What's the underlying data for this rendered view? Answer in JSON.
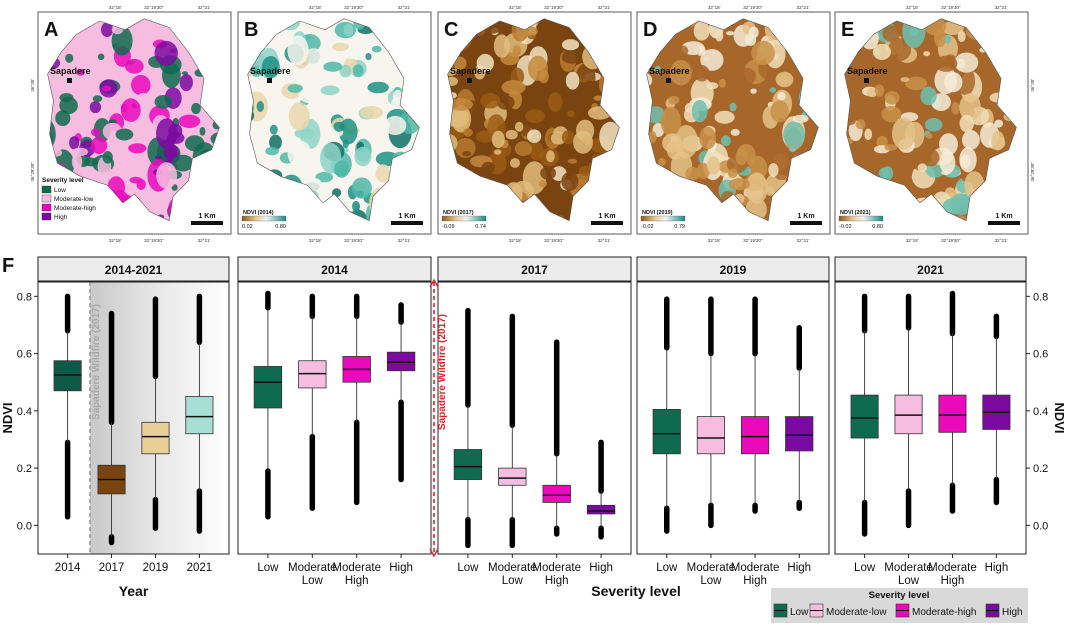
{
  "colors": {
    "low": "#0f6b4e",
    "moderate_low": "#f7bde0",
    "moderate_high": "#ea0abc",
    "high": "#7b0aa0",
    "y2014": "#0d5a48",
    "y2017": "#7a4410",
    "y2019": "#e9cf96",
    "y2021": "#a9ded5",
    "wildfire_red": "#e0202a",
    "wildfire_gray": "#9b9b9b"
  },
  "maps": [
    {
      "letter": "A",
      "town": "Sapadere",
      "scale": "1 Km",
      "type": "severity",
      "coords_top": [
        "32°18'",
        "32°19'30\"",
        "32°21'"
      ],
      "coords_bottom": [
        "32°18'",
        "32°19'30\"",
        "32°21'"
      ],
      "coords_left": [
        "36°30'",
        "36°28'30\""
      ],
      "legend_title": "Severity level",
      "legend_items": [
        "Low",
        "Moderate-low",
        "Moderate-high",
        "High"
      ]
    },
    {
      "letter": "B",
      "town": "Sapadere",
      "scale": "1 Km",
      "type": "ndvi",
      "coords_top": [
        "32°18'",
        "32°19'30\"",
        "32°21'"
      ],
      "coords_bottom": [
        "32°18'",
        "32°19'30\"",
        "32°21'"
      ],
      "ndvi_title": "NDVI (2014)",
      "ndvi_min": "0.02",
      "ndvi_max": "0.80",
      "trend": "green"
    },
    {
      "letter": "C",
      "town": "Sapadere",
      "scale": "1 Km",
      "type": "ndvi",
      "coords_top": [
        "32°18'",
        "32°19'30\"",
        "32°21'"
      ],
      "coords_bottom": [
        "32°18'",
        "32°19'30\"",
        "32°21'"
      ],
      "ndvi_title": "NDVI (2017)",
      "ndvi_min": "-0.09",
      "ndvi_max": "0.74",
      "trend": "brown"
    },
    {
      "letter": "D",
      "town": "Sapadere",
      "scale": "1 Km",
      "type": "ndvi",
      "coords_top": [
        "32°18'",
        "32°19'30\"",
        "32°21'"
      ],
      "coords_bottom": [
        "32°18'",
        "32°19'30\"",
        "32°21'"
      ],
      "ndvi_title": "NDVI (2019)",
      "ndvi_min": "-0.02",
      "ndvi_max": "0.79",
      "trend": "mixed"
    },
    {
      "letter": "E",
      "town": "Sapadere",
      "scale": "1 Km",
      "type": "ndvi",
      "coords_top": [
        "32°18'",
        "32°19'30\"",
        "32°21'"
      ],
      "coords_bottom": [
        "32°18'",
        "32°19'30\"",
        "32°21'"
      ],
      "coords_right": [
        "36°30'",
        "36°28'30\""
      ],
      "ndvi_title": "NDVI (2021)",
      "ndvi_min": "-0.02",
      "ndvi_max": "0.80",
      "trend": "mixed"
    }
  ],
  "panel_f_letter": "F",
  "annotations": {
    "wildfire_gray": "Sapadere Wildfire (2017)",
    "wildfire_red": "Sapadere Wildfire (2017)"
  },
  "legend": {
    "title": "Severity level",
    "items": [
      "Low",
      "Moderate-low",
      "Moderate-high",
      "High"
    ]
  },
  "chart_data": [
    {
      "type": "box",
      "title": "2014-2021",
      "xlabel": "Year",
      "ylabel": "NDVI",
      "ylim": [
        -0.1,
        0.85
      ],
      "yticks": [
        "0.0",
        "0.2",
        "0.4",
        "0.6",
        "0.8"
      ],
      "categories": [
        "2014",
        "2017",
        "2019",
        "2021"
      ],
      "boxes": [
        {
          "label": "2014",
          "color_key": "y2014",
          "q1": 0.47,
          "median": 0.525,
          "q3": 0.575,
          "wlo": 0.29,
          "whi": 0.68,
          "min": 0.03,
          "max": 0.8
        },
        {
          "label": "2017",
          "color_key": "y2017",
          "q1": 0.11,
          "median": 0.16,
          "q3": 0.21,
          "wlo": -0.04,
          "whi": 0.36,
          "min": -0.06,
          "max": 0.74
        },
        {
          "label": "2019",
          "color_key": "y2019",
          "q1": 0.25,
          "median": 0.31,
          "q3": 0.36,
          "wlo": 0.09,
          "whi": 0.52,
          "min": -0.01,
          "max": 0.79
        },
        {
          "label": "2021",
          "color_key": "y2021",
          "q1": 0.32,
          "median": 0.38,
          "q3": 0.45,
          "wlo": 0.12,
          "whi": 0.64,
          "min": -0.02,
          "max": 0.8
        }
      ]
    },
    {
      "type": "box",
      "title": "2014",
      "ylim": [
        -0.1,
        0.85
      ],
      "categories": [
        "Low",
        "Moderate\nLow",
        "Moderate\nHigh",
        "High"
      ],
      "boxes": [
        {
          "label": "Low",
          "color_key": "low",
          "q1": 0.41,
          "median": 0.5,
          "q3": 0.555,
          "wlo": 0.19,
          "whi": 0.76,
          "min": 0.03,
          "max": 0.81
        },
        {
          "label": "Moderate Low",
          "color_key": "moderate_low",
          "q1": 0.48,
          "median": 0.53,
          "q3": 0.575,
          "wlo": 0.31,
          "whi": 0.73,
          "min": 0.06,
          "max": 0.8
        },
        {
          "label": "Moderate High",
          "color_key": "moderate_high",
          "q1": 0.5,
          "median": 0.545,
          "q3": 0.59,
          "wlo": 0.36,
          "whi": 0.73,
          "min": 0.08,
          "max": 0.8
        },
        {
          "label": "High",
          "color_key": "high",
          "q1": 0.54,
          "median": 0.57,
          "q3": 0.605,
          "wlo": 0.43,
          "whi": 0.71,
          "min": 0.16,
          "max": 0.77
        }
      ]
    },
    {
      "type": "box",
      "title": "2017",
      "ylim": [
        -0.1,
        0.85
      ],
      "categories": [
        "Low",
        "Moderate\nLow",
        "Moderate\nHigh",
        "High"
      ],
      "boxes": [
        {
          "label": "Low",
          "color_key": "low",
          "q1": 0.16,
          "median": 0.205,
          "q3": 0.265,
          "wlo": 0.02,
          "whi": 0.42,
          "min": -0.07,
          "max": 0.75
        },
        {
          "label": "Moderate Low",
          "color_key": "moderate_low",
          "q1": 0.14,
          "median": 0.165,
          "q3": 0.2,
          "wlo": 0.02,
          "whi": 0.35,
          "min": -0.07,
          "max": 0.73
        },
        {
          "label": "Moderate High",
          "color_key": "moderate_high",
          "q1": 0.08,
          "median": 0.105,
          "q3": 0.14,
          "wlo": -0.01,
          "whi": 0.25,
          "min": -0.03,
          "max": 0.64
        },
        {
          "label": "High",
          "color_key": "high",
          "q1": 0.04,
          "median": 0.05,
          "q3": 0.07,
          "wlo": -0.01,
          "whi": 0.12,
          "min": -0.04,
          "max": 0.29
        }
      ]
    },
    {
      "type": "box",
      "title": "2019",
      "ylim": [
        -0.1,
        0.85
      ],
      "categories": [
        "Low",
        "Moderate\nLow",
        "Moderate\nHigh",
        "High"
      ],
      "boxes": [
        {
          "label": "Low",
          "color_key": "low",
          "q1": 0.25,
          "median": 0.32,
          "q3": 0.405,
          "wlo": 0.06,
          "whi": 0.62,
          "min": -0.02,
          "max": 0.79
        },
        {
          "label": "Moderate Low",
          "color_key": "moderate_low",
          "q1": 0.25,
          "median": 0.305,
          "q3": 0.38,
          "wlo": 0.07,
          "whi": 0.6,
          "min": 0.0,
          "max": 0.79
        },
        {
          "label": "Moderate High",
          "color_key": "moderate_high",
          "q1": 0.25,
          "median": 0.31,
          "q3": 0.38,
          "wlo": 0.07,
          "whi": 0.6,
          "min": 0.05,
          "max": 0.79
        },
        {
          "label": "High",
          "color_key": "high",
          "q1": 0.26,
          "median": 0.315,
          "q3": 0.38,
          "wlo": 0.08,
          "whi": 0.55,
          "min": 0.06,
          "max": 0.69
        }
      ]
    },
    {
      "type": "box",
      "title": "2021",
      "ylim": [
        -0.1,
        0.85
      ],
      "ylabel": "NDVI",
      "yticks": [
        "0.0",
        "0.2",
        "0.4",
        "0.6",
        "0.8"
      ],
      "categories": [
        "Low",
        "Moderate\nLow",
        "Moderate\nHigh",
        "High"
      ],
      "boxes": [
        {
          "label": "Low",
          "color_key": "low",
          "q1": 0.305,
          "median": 0.375,
          "q3": 0.455,
          "wlo": 0.08,
          "whi": 0.68,
          "min": -0.03,
          "max": 0.8
        },
        {
          "label": "Moderate Low",
          "color_key": "moderate_low",
          "q1": 0.32,
          "median": 0.385,
          "q3": 0.455,
          "wlo": 0.12,
          "whi": 0.69,
          "min": 0.0,
          "max": 0.8
        },
        {
          "label": "Moderate High",
          "color_key": "moderate_high",
          "q1": 0.325,
          "median": 0.385,
          "q3": 0.455,
          "wlo": 0.14,
          "whi": 0.67,
          "min": 0.05,
          "max": 0.81
        },
        {
          "label": "High",
          "color_key": "high",
          "q1": 0.335,
          "median": 0.395,
          "q3": 0.455,
          "wlo": 0.16,
          "whi": 0.66,
          "min": 0.08,
          "max": 0.73
        }
      ]
    }
  ],
  "shared_xlabel": "Severity level"
}
